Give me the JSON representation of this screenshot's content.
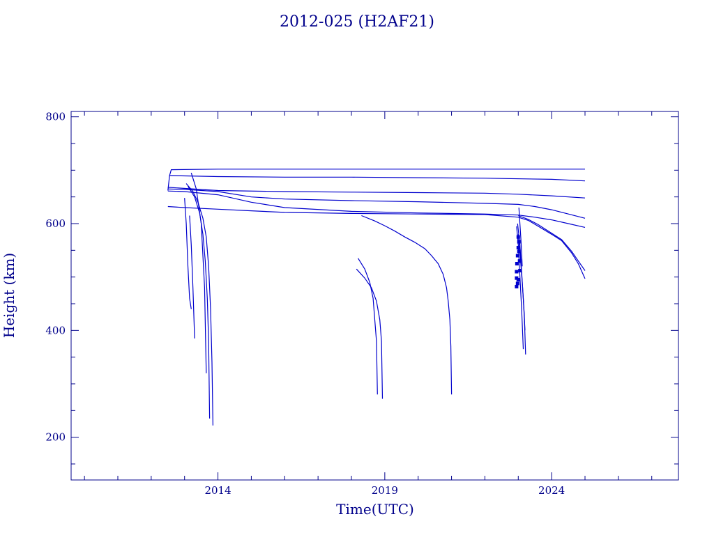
{
  "chart_data": {
    "type": "line",
    "title": "2012-025 (H2AF21)",
    "xlabel": "Time(UTC)",
    "ylabel": "Height (km)",
    "xlim": [
      2009.6,
      2027.8
    ],
    "ylim": [
      120,
      810
    ],
    "x_ticks": [
      2014,
      2019,
      2024
    ],
    "x_tick_labels": [
      "2014",
      "2019",
      "2024"
    ],
    "y_ticks": [
      200,
      400,
      600,
      800
    ],
    "y_tick_labels": [
      "200",
      "400",
      "600",
      "800"
    ],
    "grid": false,
    "legend": "none",
    "colors": {
      "axes": "#00008b",
      "series": "#0000cd",
      "background": "#ffffff"
    },
    "series": [
      {
        "x": [
          2012.5,
          2012.55,
          2012.6,
          2014,
          2016,
          2018,
          2020,
          2022,
          2024,
          2025.0
        ],
        "y": [
          662,
          690,
          701,
          702,
          702,
          702,
          702,
          702,
          702,
          702
        ]
      },
      {
        "x": [
          2012.55,
          2014,
          2016,
          2018,
          2020,
          2022,
          2024,
          2025.0
        ],
        "y": [
          690,
          688,
          687,
          687,
          686,
          685,
          683,
          680
        ]
      },
      {
        "x": [
          2012.5,
          2014,
          2016,
          2018,
          2020,
          2022,
          2023,
          2024,
          2025.0
        ],
        "y": [
          668,
          662,
          660,
          659,
          658,
          657,
          655,
          652,
          648
        ]
      },
      {
        "x": [
          2012.5,
          2013,
          2014,
          2015,
          2016,
          2018,
          2020,
          2022,
          2023,
          2023.5,
          2024,
          2024.5,
          2025.0
        ],
        "y": [
          665,
          664,
          660,
          650,
          646,
          643,
          641,
          638,
          636,
          632,
          626,
          618,
          610
        ]
      },
      {
        "x": [
          2012.5,
          2013,
          2014,
          2015,
          2016,
          2018,
          2020,
          2022,
          2023,
          2023.5,
          2024,
          2024.5,
          2025.0
        ],
        "y": [
          661,
          660,
          654,
          640,
          630,
          623,
          620,
          618,
          616,
          612,
          607,
          600,
          593
        ]
      },
      {
        "x": [
          2012.5,
          2013,
          2014,
          2015,
          2016,
          2018,
          2020,
          2022,
          2023,
          2023.3,
          2023.6,
          2024,
          2024.3,
          2024.6,
          2024.8,
          2025.0
        ],
        "y": [
          632,
          630,
          627,
          624,
          621,
          619,
          618,
          617,
          612,
          606,
          595,
          580,
          568,
          545,
          525,
          497
        ]
      },
      {
        "x": [
          2023.0,
          2023.3,
          2023.6,
          2024,
          2024.3,
          2024.6,
          2024.8,
          2025.0
        ],
        "y": [
          615,
          608,
          598,
          582,
          570,
          548,
          530,
          512
        ]
      },
      {
        "x": [
          2018.3,
          2018.7,
          2019.0,
          2019.3,
          2019.6,
          2019.9,
          2020.2,
          2020.4,
          2020.6,
          2020.75,
          2020.85,
          2020.9,
          2020.95,
          2020.98,
          2021.0
        ],
        "y": [
          615,
          605,
          596,
          586,
          575,
          565,
          553,
          540,
          525,
          505,
          480,
          455,
          420,
          370,
          280
        ]
      },
      {
        "x": [
          2018.2,
          2018.4,
          2018.55,
          2018.65,
          2018.7,
          2018.75,
          2018.78
        ],
        "y": [
          535,
          515,
          490,
          460,
          420,
          380,
          280
        ]
      },
      {
        "x": [
          2018.15,
          2018.4,
          2018.6,
          2018.75,
          2018.85,
          2018.9,
          2018.93
        ],
        "y": [
          515,
          498,
          480,
          455,
          420,
          380,
          272
        ]
      },
      {
        "x": [
          2013.0,
          2013.05,
          2013.1,
          2013.15,
          2013.2
        ],
        "y": [
          648,
          600,
          520,
          460,
          440
        ]
      },
      {
        "x": [
          2013.15,
          2013.2,
          2013.25,
          2013.3
        ],
        "y": [
          615,
          560,
          480,
          385
        ]
      },
      {
        "x": [
          2013.05,
          2013.25,
          2013.4,
          2013.55,
          2013.65,
          2013.72,
          2013.78,
          2013.82,
          2013.85
        ],
        "y": [
          675,
          660,
          640,
          610,
          575,
          520,
          440,
          340,
          222
        ]
      },
      {
        "x": [
          2013.1,
          2013.3,
          2013.45,
          2013.55,
          2013.62,
          2013.68,
          2013.72,
          2013.75
        ],
        "y": [
          670,
          650,
          620,
          580,
          530,
          460,
          380,
          235
        ]
      },
      {
        "x": [
          2013.2,
          2013.35,
          2013.5,
          2013.6,
          2013.65
        ],
        "y": [
          695,
          665,
          600,
          480,
          320
        ]
      },
      {
        "x": [
          2022.95,
          2023.0,
          2023.05,
          2023.1,
          2023.15
        ],
        "y": [
          595,
          560,
          500,
          440,
          365
        ]
      },
      {
        "x": [
          2023.0,
          2023.05,
          2023.12,
          2023.18,
          2023.22
        ],
        "y": [
          580,
          545,
          490,
          430,
          355
        ]
      },
      {
        "x": [
          2022.98,
          2023.05,
          2023.1,
          2023.15,
          2023.2
        ],
        "y": [
          600,
          560,
          510,
          460,
          400
        ]
      },
      {
        "x": [
          2023.02,
          2023.08,
          2023.12
        ],
        "y": [
          630,
          570,
          520
        ]
      }
    ],
    "markers": {
      "x": [
        2022.95,
        2022.95,
        2022.95,
        2022.96,
        2022.98,
        2023.0,
        2023.0,
        2023.02,
        2023.02,
        2023.04,
        2023.05,
        2023.0,
        2022.98
      ],
      "y": [
        482,
        498,
        510,
        525,
        540,
        555,
        575,
        566,
        548,
        530,
        512,
        495,
        488
      ]
    }
  }
}
